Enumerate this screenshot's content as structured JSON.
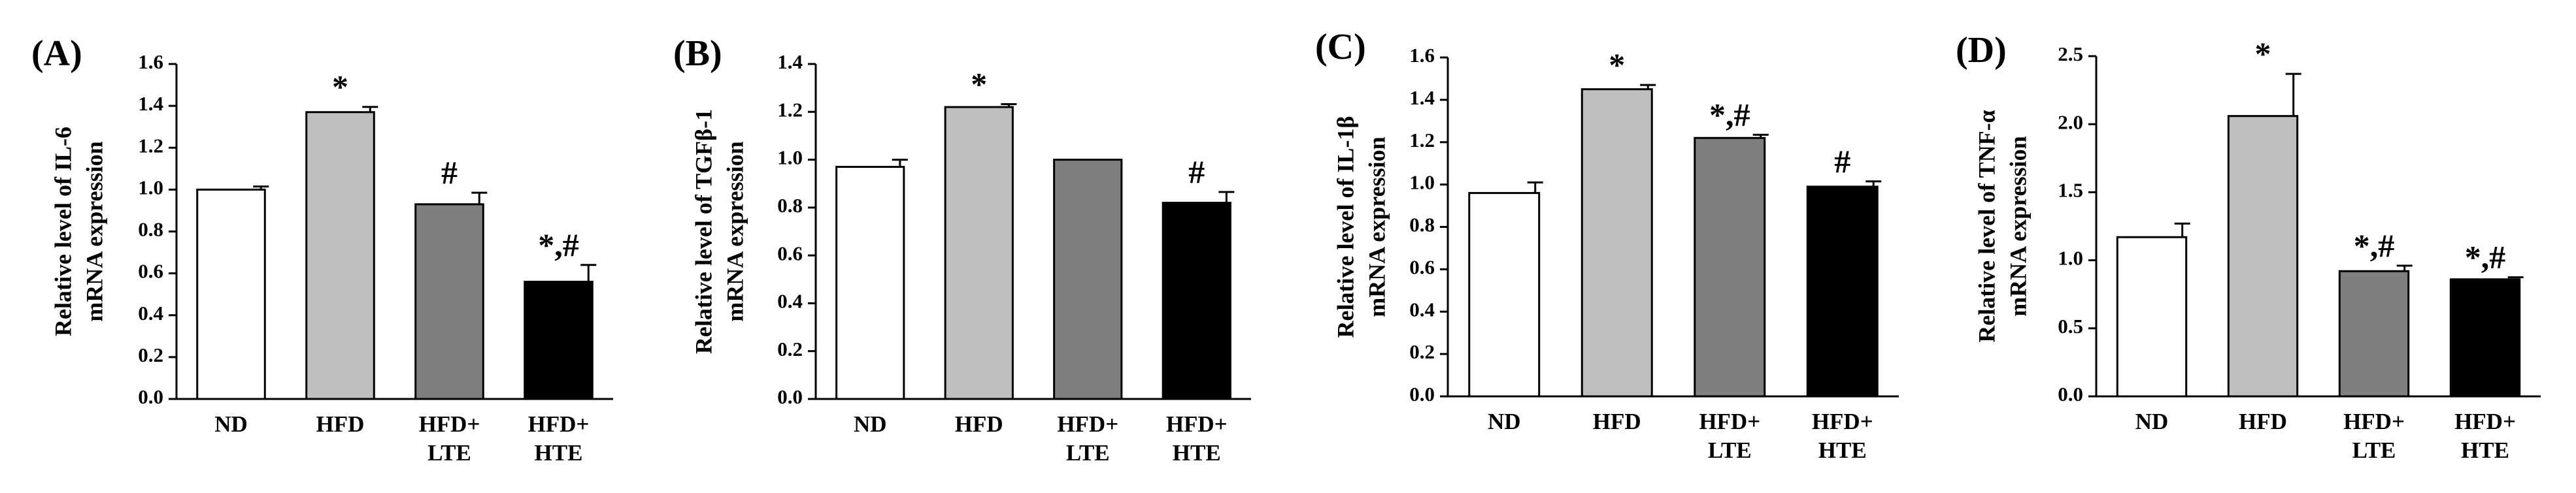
{
  "figure": {
    "bar_colors": [
      "#ffffff",
      "#bfbfbf",
      "#7f7f7f",
      "#000000"
    ]
  },
  "chart_data": [
    {
      "type": "bar",
      "panel": "(A)",
      "ylabel": [
        "Relative level of IL-6",
        "mRNA expression"
      ],
      "xlabel": "",
      "categories": [
        [
          "ND"
        ],
        [
          "HFD"
        ],
        [
          "HFD+",
          "LTE"
        ],
        [
          "HFD+",
          "HTE"
        ]
      ],
      "values": [
        1.0,
        1.37,
        0.93,
        0.56
      ],
      "errors": [
        0.015,
        0.025,
        0.055,
        0.08
      ],
      "annotations": [
        "",
        "*",
        "#",
        "*,#"
      ],
      "ylim": [
        0,
        1.6
      ],
      "yticks": [
        0,
        0.2,
        0.4,
        0.6,
        0.8,
        1.0,
        1.2,
        1.4,
        1.6
      ],
      "yticklabels": [
        "0.0",
        "0.2",
        "0.4",
        "0.6",
        "0.8",
        "1.0",
        "1.2",
        "1.4",
        "1.6"
      ],
      "grid": false
    },
    {
      "type": "bar",
      "panel": "(B)",
      "ylabel": [
        "Relative level of TGFβ-1",
        "mRNA expression"
      ],
      "xlabel": "",
      "categories": [
        [
          "ND"
        ],
        [
          "HFD"
        ],
        [
          "HFD+",
          "LTE"
        ],
        [
          "HFD+",
          "HTE"
        ]
      ],
      "values": [
        0.97,
        1.22,
        1.0,
        0.82
      ],
      "errors": [
        0.03,
        0.012,
        0.0,
        0.045
      ],
      "annotations": [
        "",
        "*",
        "",
        "#"
      ],
      "ylim": [
        0,
        1.4
      ],
      "yticks": [
        0,
        0.2,
        0.4,
        0.6,
        0.8,
        1.0,
        1.2,
        1.4
      ],
      "yticklabels": [
        "0.0",
        "0.2",
        "0.4",
        "0.6",
        "0.8",
        "1.0",
        "1.2",
        "1.4"
      ],
      "grid": false
    },
    {
      "type": "bar",
      "panel": "(C)",
      "ylabel": [
        "Relative level of IL-1β",
        "mRNA expression"
      ],
      "xlabel": "",
      "categories": [
        [
          "ND"
        ],
        [
          "HFD"
        ],
        [
          "HFD+",
          "LTE"
        ],
        [
          "HFD+",
          "HTE"
        ]
      ],
      "values": [
        0.96,
        1.45,
        1.22,
        0.99
      ],
      "errors": [
        0.05,
        0.02,
        0.015,
        0.025
      ],
      "annotations": [
        "",
        "*",
        "*,#",
        "#"
      ],
      "ylim": [
        0,
        1.6
      ],
      "yticks": [
        0,
        0.2,
        0.4,
        0.6,
        0.8,
        1.0,
        1.2,
        1.4,
        1.6
      ],
      "yticklabels": [
        "0.0",
        "0.2",
        "0.4",
        "0.6",
        "0.8",
        "1.0",
        "1.2",
        "1.4",
        "1.6"
      ],
      "grid": false
    },
    {
      "type": "bar",
      "panel": "(D)",
      "ylabel": [
        "Relative level of TNF-α",
        "mRNA expression"
      ],
      "xlabel": "",
      "categories": [
        [
          "ND"
        ],
        [
          "HFD"
        ],
        [
          "HFD+",
          "LTE"
        ],
        [
          "HFD+",
          "HTE"
        ]
      ],
      "values": [
        1.17,
        2.06,
        0.92,
        0.86
      ],
      "errors": [
        0.1,
        0.31,
        0.04,
        0.015
      ],
      "annotations": [
        "",
        "*",
        "*,#",
        "*,#"
      ],
      "ylim": [
        0,
        2.5
      ],
      "yticks": [
        0,
        0.5,
        1.0,
        1.5,
        2.0,
        2.5
      ],
      "yticklabels": [
        "0.0",
        "0.5",
        "1.0",
        "1.5",
        "2.0",
        "2.5"
      ],
      "grid": false
    }
  ]
}
